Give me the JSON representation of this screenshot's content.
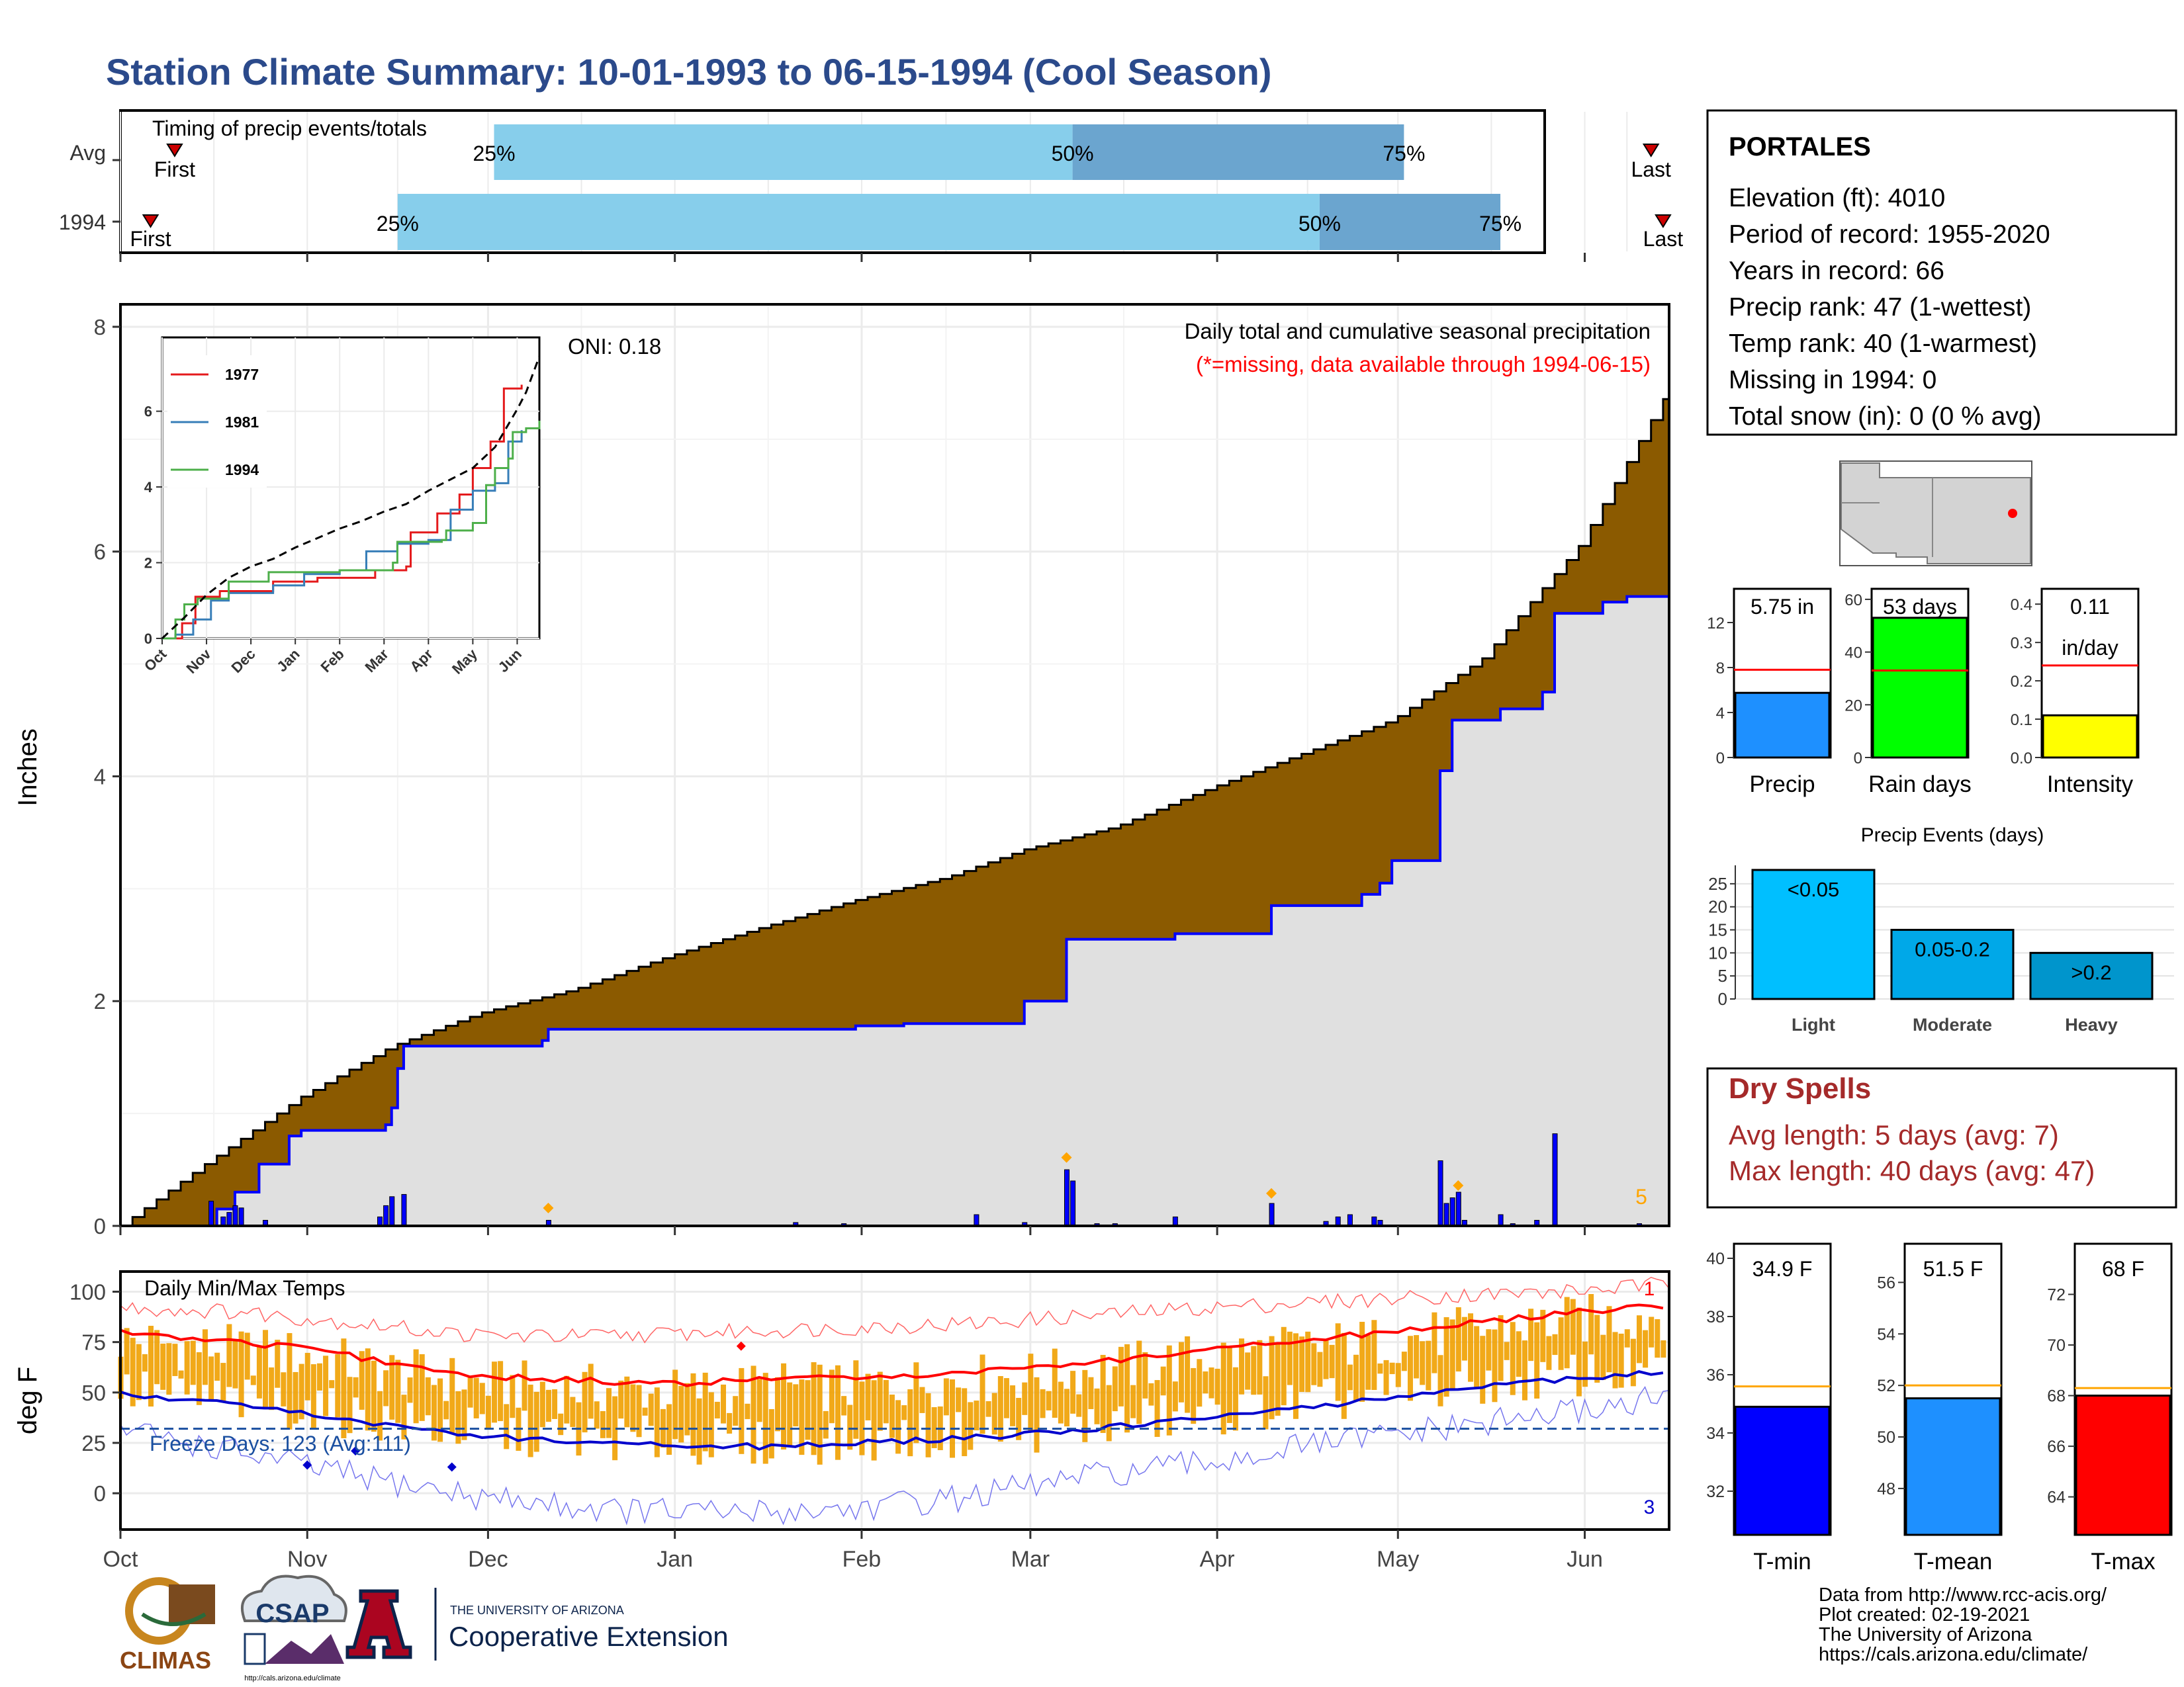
{
  "title": "Station Climate Summary: 10-01-1993 to 06-15-1994 (Cool Season)",
  "colors": {
    "title": "#2b4a8b",
    "brown": "#8b5a00",
    "gray": "#e0e0e0",
    "blue": "#0000ff",
    "tmax": "#ff0000",
    "tmin": "#0000cc",
    "orange": "#f0a000",
    "bar_light": "#87ceeb",
    "bar_dark": "#6ba5cf",
    "dry": "#a52a2a",
    "bg": "#ffffff"
  },
  "timing": {
    "label": "Timing of precip events/totals",
    "rows": [
      {
        "name": "Avg",
        "first_label": "First",
        "last_label": "Last",
        "first_date": "1993-10-10",
        "last_date": "1994-06-12",
        "p25": "1993-12-02",
        "p50": "1994-03-08",
        "p75": "1994-05-02"
      },
      {
        "name": "1994",
        "first_label": "First",
        "last_label": "Last",
        "first_date": "1993-10-06",
        "last_date": "1994-06-14",
        "p25": "1993-11-16",
        "p50": "1994-04-18",
        "p75": "1994-05-18"
      }
    ],
    "p25_label": "25%",
    "p50_label": "50%",
    "p75_label": "75%"
  },
  "precip": {
    "ylabel": "Inches",
    "oni": "ONI: 0.18",
    "note1": "Daily total and cumulative seasonal precipitation",
    "note2": "(*=missing, data available through 1994-06-15)",
    "corner_count": "5",
    "ylim": [
      0,
      8.2
    ],
    "yticks": [
      0,
      2,
      4,
      6,
      8
    ],
    "avg_cum": [
      [
        "1993-10-01",
        0
      ],
      [
        "1993-10-15",
        0.55
      ],
      [
        "1993-10-31",
        1.15
      ],
      [
        "1993-11-15",
        1.6
      ],
      [
        "1993-11-30",
        1.9
      ],
      [
        "1993-12-15",
        2.1
      ],
      [
        "1993-12-31",
        2.4
      ],
      [
        "1994-01-15",
        2.65
      ],
      [
        "1994-01-31",
        2.9
      ],
      [
        "1994-02-15",
        3.1
      ],
      [
        "1994-02-28",
        3.35
      ],
      [
        "1994-03-15",
        3.55
      ],
      [
        "1994-03-31",
        3.9
      ],
      [
        "1994-04-15",
        4.2
      ],
      [
        "1994-04-30",
        4.5
      ],
      [
        "1994-05-15",
        5.05
      ],
      [
        "1994-05-31",
        6.05
      ],
      [
        "1994-06-15",
        7.45
      ]
    ],
    "obs_cum": [
      [
        "1993-10-01",
        0
      ],
      [
        "1993-10-16",
        0
      ],
      [
        "1993-10-17",
        0.15
      ],
      [
        "1993-10-20",
        0.3
      ],
      [
        "1993-10-24",
        0.55
      ],
      [
        "1993-10-29",
        0.8
      ],
      [
        "1993-10-31",
        0.85
      ],
      [
        "1993-11-13",
        0.85
      ],
      [
        "1993-11-14",
        0.9
      ],
      [
        "1993-11-15",
        1.05
      ],
      [
        "1993-11-16",
        1.4
      ],
      [
        "1993-11-17",
        1.6
      ],
      [
        "1993-12-10",
        1.65
      ],
      [
        "1993-12-11",
        1.75
      ],
      [
        "1994-01-31",
        1.78
      ],
      [
        "1994-02-08",
        1.8
      ],
      [
        "1994-02-28",
        2.0
      ],
      [
        "1994-03-06",
        2.0
      ],
      [
        "1994-03-07",
        2.55
      ],
      [
        "1994-03-25",
        2.6
      ],
      [
        "1994-04-09",
        2.6
      ],
      [
        "1994-04-10",
        2.85
      ],
      [
        "1994-04-25",
        2.95
      ],
      [
        "1994-04-28",
        3.05
      ],
      [
        "1994-04-30",
        3.25
      ],
      [
        "1994-05-07",
        3.25
      ],
      [
        "1994-05-08",
        4.05
      ],
      [
        "1994-05-10",
        4.5
      ],
      [
        "1994-05-12",
        4.5
      ],
      [
        "1994-05-18",
        4.6
      ],
      [
        "1994-05-25",
        4.75
      ],
      [
        "1994-05-27",
        5.45
      ],
      [
        "1994-06-04",
        5.55
      ],
      [
        "1994-06-08",
        5.6
      ],
      [
        "1994-06-15",
        5.75
      ]
    ],
    "daily": [
      [
        "1993-10-16",
        0.22
      ],
      [
        "1993-10-18",
        0.08
      ],
      [
        "1993-10-19",
        0.12
      ],
      [
        "1993-10-20",
        0.18
      ],
      [
        "1993-10-21",
        0.16
      ],
      [
        "1993-10-25",
        0.05
      ],
      [
        "1993-11-13",
        0.08
      ],
      [
        "1993-11-14",
        0.18
      ],
      [
        "1993-11-15",
        0.26
      ],
      [
        "1993-11-17",
        0.28
      ],
      [
        "1993-12-11",
        0.05
      ],
      [
        "1994-01-21",
        0.03
      ],
      [
        "1994-01-29",
        0.02
      ],
      [
        "1994-02-20",
        0.1
      ],
      [
        "1994-02-28",
        0.03
      ],
      [
        "1994-03-07",
        0.5
      ],
      [
        "1994-03-08",
        0.4
      ],
      [
        "1994-03-12",
        0.02
      ],
      [
        "1994-03-15",
        0.02
      ],
      [
        "1994-03-25",
        0.08
      ],
      [
        "1994-04-10",
        0.2
      ],
      [
        "1994-04-19",
        0.04
      ],
      [
        "1994-04-21",
        0.08
      ],
      [
        "1994-04-23",
        0.1
      ],
      [
        "1994-04-27",
        0.08
      ],
      [
        "1994-04-28",
        0.05
      ],
      [
        "1994-05-08",
        0.58
      ],
      [
        "1994-05-09",
        0.2
      ],
      [
        "1994-05-10",
        0.25
      ],
      [
        "1994-05-11",
        0.3
      ],
      [
        "1994-05-12",
        0.05
      ],
      [
        "1994-05-18",
        0.1
      ],
      [
        "1994-05-20",
        0.02
      ],
      [
        "1994-05-24",
        0.05
      ],
      [
        "1994-05-27",
        0.82
      ],
      [
        "1994-06-10",
        0.02
      ]
    ],
    "markers": [
      [
        "1993-12-11",
        0.1
      ],
      [
        "1994-03-07",
        0.55
      ],
      [
        "1994-04-10",
        0.23
      ],
      [
        "1994-05-11",
        0.3
      ]
    ]
  },
  "inset": {
    "yticks": [
      0,
      2,
      4,
      6
    ],
    "months": [
      "Oct",
      "Nov",
      "Dec",
      "Jan",
      "Feb",
      "Mar",
      "Apr",
      "May",
      "Jun"
    ],
    "series": [
      {
        "name": "1977",
        "color": "#e41a1c",
        "values": [
          [
            0,
            0
          ],
          [
            0.4,
            0
          ],
          [
            0.45,
            0.4
          ],
          [
            0.7,
            0.4
          ],
          [
            0.75,
            1.1
          ],
          [
            1.2,
            1.1
          ],
          [
            1.3,
            1.25
          ],
          [
            2.5,
            1.5
          ],
          [
            3.5,
            1.6
          ],
          [
            4.8,
            1.8
          ],
          [
            5.5,
            1.9
          ],
          [
            5.6,
            2.8
          ],
          [
            6.2,
            3.3
          ],
          [
            6.7,
            3.8
          ],
          [
            7.0,
            4.5
          ],
          [
            7.4,
            5.2
          ],
          [
            7.7,
            6.6
          ],
          [
            8.0,
            6.6
          ],
          [
            8.1,
            6.7
          ]
        ]
      },
      {
        "name": "1981",
        "color": "#377eb8",
        "values": [
          [
            0,
            0
          ],
          [
            0.3,
            0.1
          ],
          [
            0.7,
            0.5
          ],
          [
            1.1,
            1.0
          ],
          [
            1.5,
            1.2
          ],
          [
            2.5,
            1.4
          ],
          [
            3.2,
            1.7
          ],
          [
            4.0,
            1.8
          ],
          [
            4.6,
            2.3
          ],
          [
            5.3,
            2.5
          ],
          [
            6.0,
            2.6
          ],
          [
            6.5,
            3.4
          ],
          [
            7.0,
            3.9
          ],
          [
            7.5,
            4.1
          ],
          [
            7.8,
            5.2
          ],
          [
            8.1,
            5.5
          ]
        ]
      },
      {
        "name": "1994",
        "color": "#4daf4a",
        "values": [
          [
            0,
            0
          ],
          [
            0.25,
            0
          ],
          [
            0.3,
            0.5
          ],
          [
            0.5,
            0.9
          ],
          [
            0.8,
            1.05
          ],
          [
            1.5,
            1.5
          ],
          [
            2.4,
            1.75
          ],
          [
            4.0,
            1.8
          ],
          [
            5.2,
            2.0
          ],
          [
            5.3,
            2.55
          ],
          [
            6.3,
            2.6
          ],
          [
            6.4,
            2.85
          ],
          [
            7.0,
            3.05
          ],
          [
            7.3,
            4.05
          ],
          [
            7.5,
            4.5
          ],
          [
            7.8,
            4.75
          ],
          [
            7.9,
            5.45
          ],
          [
            8.2,
            5.55
          ],
          [
            8.5,
            5.75
          ]
        ]
      }
    ],
    "avg": [
      [
        0,
        0
      ],
      [
        0.5,
        0.55
      ],
      [
        1.0,
        1.15
      ],
      [
        1.5,
        1.6
      ],
      [
        2.0,
        1.9
      ],
      [
        2.5,
        2.1
      ],
      [
        3.0,
        2.4
      ],
      [
        3.5,
        2.65
      ],
      [
        4.0,
        2.9
      ],
      [
        4.5,
        3.1
      ],
      [
        5.0,
        3.35
      ],
      [
        5.5,
        3.55
      ],
      [
        6.0,
        3.9
      ],
      [
        6.5,
        4.2
      ],
      [
        7.0,
        4.5
      ],
      [
        7.5,
        5.05
      ],
      [
        8.0,
        6.05
      ],
      [
        8.2,
        6.5
      ],
      [
        8.5,
        7.45
      ]
    ]
  },
  "temps": {
    "ylabel": "deg F",
    "label": "Daily Min/Max Temps",
    "freeze": "Freeze Days: 123 (Avg:111)",
    "freeze_line": 32,
    "max_count": "1",
    "min_count": "3",
    "yticks": [
      0,
      25,
      50,
      75,
      100
    ],
    "ylim": [
      -18,
      110
    ],
    "avg_max": [
      [
        0,
        80
      ],
      [
        15,
        76
      ],
      [
        31,
        72
      ],
      [
        46,
        64
      ],
      [
        61,
        58
      ],
      [
        76,
        56
      ],
      [
        92,
        54
      ],
      [
        107,
        57
      ],
      [
        123,
        57
      ],
      [
        138,
        60
      ],
      [
        150,
        62
      ],
      [
        165,
        66
      ],
      [
        181,
        72
      ],
      [
        196,
        76
      ],
      [
        211,
        80
      ],
      [
        226,
        85
      ],
      [
        242,
        90
      ],
      [
        257,
        93
      ]
    ],
    "avg_min": [
      [
        0,
        49
      ],
      [
        15,
        45
      ],
      [
        31,
        40
      ],
      [
        46,
        33
      ],
      [
        61,
        28
      ],
      [
        76,
        26
      ],
      [
        92,
        24
      ],
      [
        107,
        23
      ],
      [
        123,
        25
      ],
      [
        138,
        27
      ],
      [
        150,
        29
      ],
      [
        165,
        33
      ],
      [
        181,
        38
      ],
      [
        196,
        42
      ],
      [
        211,
        48
      ],
      [
        226,
        53
      ],
      [
        242,
        57
      ],
      [
        257,
        60
      ]
    ],
    "rec_max": [
      [
        0,
        92
      ],
      [
        20,
        90
      ],
      [
        40,
        84
      ],
      [
        60,
        78
      ],
      [
        80,
        78
      ],
      [
        100,
        80
      ],
      [
        120,
        82
      ],
      [
        140,
        84
      ],
      [
        160,
        88
      ],
      [
        180,
        92
      ],
      [
        200,
        95
      ],
      [
        220,
        98
      ],
      [
        240,
        100
      ],
      [
        257,
        104
      ]
    ],
    "rec_min": [
      [
        0,
        32
      ],
      [
        20,
        20
      ],
      [
        40,
        8
      ],
      [
        60,
        -2
      ],
      [
        80,
        -8
      ],
      [
        100,
        -10
      ],
      [
        120,
        -8
      ],
      [
        140,
        -2
      ],
      [
        160,
        8
      ],
      [
        180,
        15
      ],
      [
        200,
        25
      ],
      [
        220,
        32
      ],
      [
        240,
        40
      ],
      [
        257,
        48
      ]
    ],
    "markers": [
      [
        "1993-11-01",
        14,
        "blue"
      ],
      [
        "1993-11-09",
        21,
        "blue"
      ],
      [
        "1993-11-25",
        13,
        "blue"
      ],
      [
        "1994-01-12",
        73,
        "red"
      ]
    ]
  },
  "xaxis": {
    "months": [
      "Oct",
      "Nov",
      "Dec",
      "Jan",
      "Feb",
      "Mar",
      "Apr",
      "May",
      "Jun"
    ]
  },
  "station": {
    "name": "PORTALES",
    "lines": [
      "Elevation (ft): 4010",
      "Period of record: 1955-2020",
      "Years in record: 66",
      "Precip rank: 47 (1-wettest)",
      "Temp rank: 40 (1-warmest)",
      "Missing in 1994: 0",
      "Total snow (in): 0 (0 % avg)"
    ]
  },
  "mini_precip": [
    {
      "label": "Precip",
      "value_text": "5.75 in",
      "value": 5.75,
      "avg": 7.8,
      "ymax": 15,
      "yticks": [
        0,
        4,
        8,
        12
      ],
      "color": "#1e90ff"
    },
    {
      "label": "Rain days",
      "value_text": "53 days",
      "value": 53,
      "avg": 33,
      "ymax": 64,
      "yticks": [
        0,
        20,
        40,
        60
      ],
      "color": "#00ff00"
    },
    {
      "label": "Intensity",
      "value_text": "0.11",
      "value_text2": "in/day",
      "value": 0.11,
      "avg": 0.24,
      "ymax": 0.44,
      "yticks": [
        0.0,
        0.1,
        0.2,
        0.3,
        0.4
      ],
      "color": "#ffff00"
    }
  ],
  "events": {
    "title": "Precip Events (days)",
    "yticks": [
      0,
      5,
      10,
      15,
      20,
      25
    ],
    "ymax": 29,
    "bars": [
      {
        "category": "Light",
        "label": "<0.05",
        "value": 28,
        "color": "#00bfff"
      },
      {
        "category": "Moderate",
        "label": "0.05-0.2",
        "value": 15,
        "color": "#00a8e8"
      },
      {
        "category": "Heavy",
        "label": ">0.2",
        "value": 10,
        "color": "#0095cc"
      }
    ]
  },
  "dry": {
    "title": "Dry Spells",
    "line1": "Avg length: 5 days (avg: 7)",
    "line2": "Max length: 40 days (avg: 47)"
  },
  "mini_temp": [
    {
      "label": "T-min",
      "value_text": "34.9 F",
      "value": 34.9,
      "avg": 35.6,
      "ymin": 30.5,
      "ymax": 40.5,
      "yticks": [
        32,
        34,
        36,
        38,
        40
      ],
      "color": "#0000ff"
    },
    {
      "label": "T-mean",
      "value_text": "51.5 F",
      "value": 51.5,
      "avg": 52.0,
      "ymin": 46.2,
      "ymax": 57.5,
      "yticks": [
        48,
        50,
        52,
        54,
        56
      ],
      "color": "#1e90ff"
    },
    {
      "label": "T-max",
      "value_text": "68 F",
      "value": 68,
      "avg": 68.3,
      "ymin": 62.5,
      "ymax": 74,
      "yticks": [
        64,
        66,
        68,
        70,
        72
      ],
      "color": "#ff0000"
    }
  ],
  "footer": {
    "lines": [
      "Data from http://www.rcc-acis.org/",
      "Plot created: 02-19-2021",
      "The University of Arizona",
      "https://cals.arizona.edu/climate/"
    ],
    "logo1": "CLIMAS",
    "logo2": "CSAP",
    "logo2_sub": "http://cals.arizona.edu/climate",
    "logo3_a": "THE UNIVERSITY OF ARIZONA",
    "logo3_b": "Cooperative Extension"
  }
}
